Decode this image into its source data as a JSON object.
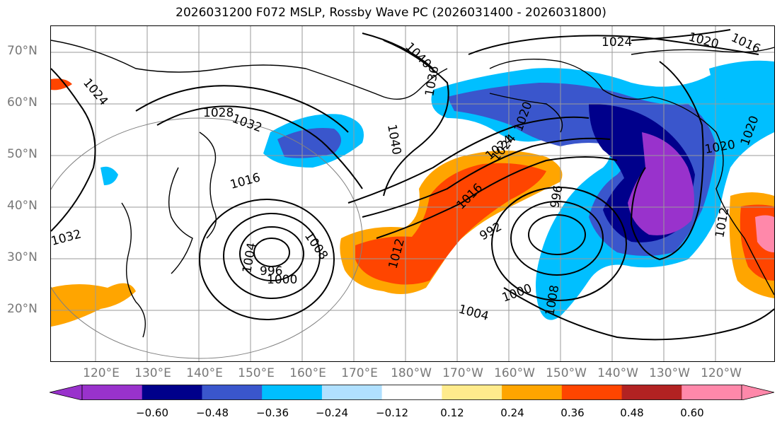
{
  "title": "2026031200 F072 MSLP, Rossby Wave PC (2026031400 - 2026031800)",
  "lat_labels": [
    "70°N",
    "60°N",
    "50°N",
    "40°N",
    "30°N",
    "20°N"
  ],
  "lon_labels": [
    "120°E",
    "130°E",
    "140°E",
    "150°E",
    "160°E",
    "170°E",
    "180°W",
    "170°W",
    "160°W",
    "150°W",
    "140°W",
    "130°W",
    "120°W"
  ],
  "isobar_labels": [
    "1024",
    "1028",
    "1032",
    "1016",
    "1020",
    "1024",
    "1020",
    "1016",
    "1040",
    "1036",
    "1040",
    "1024",
    "1020",
    "1020",
    "1032",
    "1004",
    "996",
    "1000",
    "1008",
    "1012",
    "1016",
    "1024",
    "996",
    "992",
    "1000",
    "1004",
    "1008",
    "1012"
  ],
  "colorbar": {
    "ticks": [
      "−0.60",
      "−0.48",
      "−0.36",
      "−0.24",
      "−0.12",
      "0.12",
      "0.24",
      "0.36",
      "0.48",
      "0.60"
    ],
    "colors": [
      "#9932cc",
      "#00008b",
      "#3a56cc",
      "#00bfff",
      "#b0e0ff",
      "#ffffff",
      "#ffeb8c",
      "#ffa500",
      "#ff4500",
      "#b22222",
      "#ff88aa"
    ],
    "extend_low_color": "#9932cc",
    "extend_high_color": "#ff88aa"
  }
}
